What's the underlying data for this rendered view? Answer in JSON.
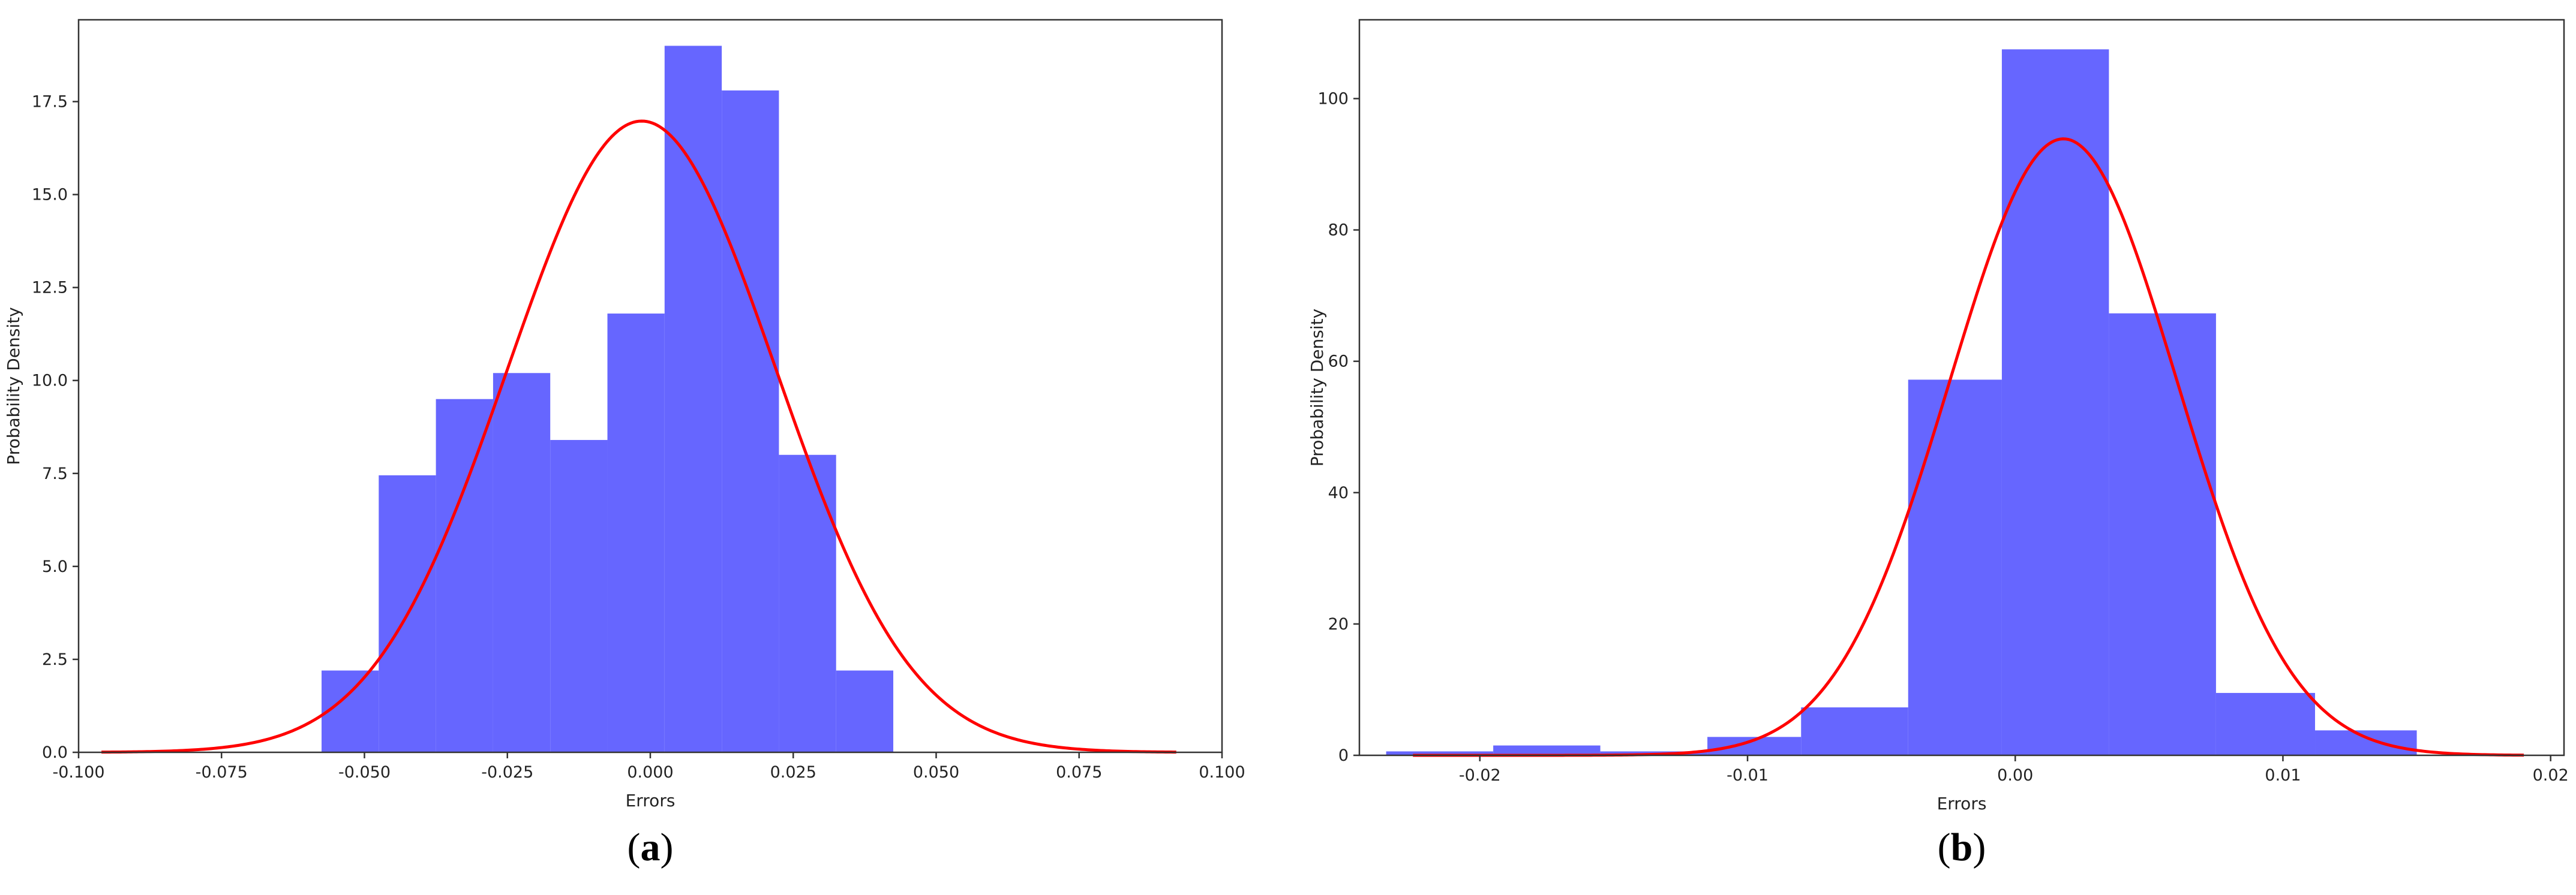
{
  "chart_data": [
    {
      "type": "bar",
      "panel_label": "(a)",
      "panel_label_parts": [
        "(",
        "a",
        ")"
      ],
      "xlabel": "Errors",
      "ylabel": "Probability Density",
      "xlim": [
        -0.1,
        0.1
      ],
      "ylim": [
        0,
        19.7
      ],
      "xticks": [
        -0.1,
        -0.075,
        -0.05,
        -0.025,
        0.0,
        0.025,
        0.05,
        0.075,
        0.1
      ],
      "xtick_labels": [
        "-0.100",
        "-0.075",
        "-0.050",
        "-0.025",
        "0.000",
        "0.025",
        "0.050",
        "0.075",
        "0.100"
      ],
      "yticks": [
        0,
        2.5,
        5,
        7.5,
        10,
        12.5,
        15,
        17.5
      ],
      "ytick_labels": [
        "0.0",
        "2.5",
        "5.0",
        "7.5",
        "10.0",
        "12.5",
        "15.0",
        "17.5"
      ],
      "grid": false,
      "series": [
        {
          "kind": "histogram",
          "color": "#6666ff",
          "bins": [
            {
              "x0": -0.0575,
              "x1": -0.0475,
              "value": 2.2
            },
            {
              "x0": -0.0475,
              "x1": -0.0375,
              "value": 7.45
            },
            {
              "x0": -0.0375,
              "x1": -0.0275,
              "value": 9.5
            },
            {
              "x0": -0.0275,
              "x1": -0.0175,
              "value": 10.2
            },
            {
              "x0": -0.0175,
              "x1": -0.0075,
              "value": 8.4
            },
            {
              "x0": -0.0075,
              "x1": 0.0025,
              "value": 11.8
            },
            {
              "x0": 0.0025,
              "x1": 0.0125,
              "value": 19.0
            },
            {
              "x0": 0.0125,
              "x1": 0.0225,
              "value": 17.8
            },
            {
              "x0": 0.0225,
              "x1": 0.0325,
              "value": 8.0
            },
            {
              "x0": 0.0325,
              "x1": 0.0425,
              "value": 2.2
            }
          ]
        },
        {
          "kind": "normal_pdf",
          "color": "#ff0000",
          "mean": -0.0015,
          "std": 0.0235,
          "x_range": [
            -0.096,
            0.092
          ]
        }
      ]
    },
    {
      "type": "bar",
      "panel_label": "(b)",
      "panel_label_parts": [
        "(",
        "b",
        ")"
      ],
      "xlabel": "Errors",
      "ylabel": "Probability Density",
      "xlim": [
        -0.0245,
        0.0205
      ],
      "ylim": [
        0,
        112
      ],
      "xticks": [
        -0.02,
        -0.01,
        0.0,
        0.01,
        0.02
      ],
      "xtick_labels": [
        "-0.02",
        "-0.01",
        "0.00",
        "0.01",
        "0.02"
      ],
      "yticks": [
        0,
        20,
        40,
        60,
        80,
        100
      ],
      "ytick_labels": [
        "0",
        "20",
        "40",
        "60",
        "80",
        "100"
      ],
      "grid": false,
      "series": [
        {
          "kind": "histogram",
          "color": "#6666ff",
          "bins": [
            {
              "x0": -0.0235,
              "x1": -0.0195,
              "value": 0.6
            },
            {
              "x0": -0.0195,
              "x1": -0.0155,
              "value": 1.5
            },
            {
              "x0": -0.0155,
              "x1": -0.0115,
              "value": 0.6
            },
            {
              "x0": -0.0115,
              "x1": -0.008,
              "value": 2.8
            },
            {
              "x0": -0.008,
              "x1": -0.004,
              "value": 7.3
            },
            {
              "x0": -0.004,
              "x1": -0.0005,
              "value": 57.2
            },
            {
              "x0": -0.0005,
              "x1": 0.0035,
              "value": 107.5
            },
            {
              "x0": 0.0035,
              "x1": 0.0075,
              "value": 67.3
            },
            {
              "x0": 0.0075,
              "x1": 0.0112,
              "value": 9.5
            },
            {
              "x0": 0.0112,
              "x1": 0.015,
              "value": 3.8
            }
          ]
        },
        {
          "kind": "normal_pdf",
          "color": "#ff0000",
          "mean": 0.0018,
          "std": 0.00425,
          "x_range": [
            -0.0225,
            0.019
          ]
        }
      ]
    }
  ]
}
